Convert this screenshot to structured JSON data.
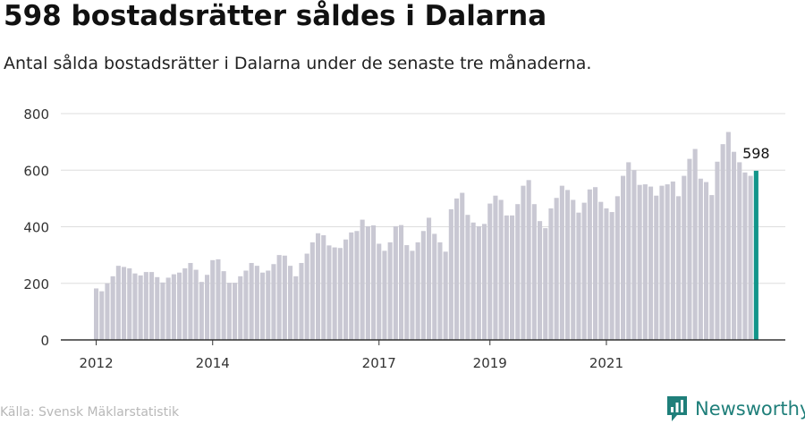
{
  "title": "598 bostadsrätter såldes i Dalarna",
  "subtitle": "Antal sålda bostadsrätter i Dalarna under de senaste tre månaderna.",
  "source": "Källa: Svensk Mäklarstatistik",
  "brand": {
    "name": "Newsworthy",
    "icon": "newsworthy-logo-icon",
    "color": "#1f7f7a"
  },
  "colors": {
    "bar": "#c9c8d3",
    "highlight": "#12958a",
    "grid": "#dddddd",
    "axis": "#333333"
  },
  "chart_data": {
    "type": "bar",
    "title": "598 bostadsrätter såldes i Dalarna",
    "subtitle": "Antal sålda bostadsrätter i Dalarna under de senaste tre månaderna.",
    "xlabel": "",
    "ylabel": "",
    "ylim": [
      0,
      800
    ],
    "yticks": [
      0,
      200,
      400,
      600,
      800
    ],
    "xtick_labels": [
      "2012",
      "2014",
      "2017",
      "2019",
      "2021"
    ],
    "xtick_indices": [
      0,
      21,
      51,
      71,
      92
    ],
    "grid": true,
    "highlight_label": "598",
    "start": "2012-01",
    "frequency": "monthly, rolling three-month total",
    "values": [
      182,
      172,
      200,
      225,
      262,
      258,
      253,
      235,
      228,
      240,
      240,
      222,
      203,
      220,
      232,
      238,
      253,
      272,
      248,
      205,
      230,
      282,
      285,
      243,
      202,
      202,
      225,
      245,
      272,
      262,
      238,
      245,
      268,
      300,
      298,
      262,
      225,
      272,
      305,
      345,
      377,
      370,
      334,
      327,
      325,
      355,
      380,
      385,
      425,
      402,
      405,
      340,
      315,
      345,
      402,
      406,
      335,
      315,
      345,
      385,
      432,
      375,
      345,
      312,
      462,
      500,
      520,
      442,
      415,
      402,
      410,
      482,
      510,
      495,
      440,
      440,
      480,
      545,
      565,
      480,
      420,
      395,
      465,
      502,
      545,
      530,
      495,
      450,
      485,
      532,
      540,
      488,
      465,
      452,
      508,
      580,
      628,
      600,
      548,
      550,
      542,
      510,
      545,
      550,
      560,
      508,
      580,
      640,
      675,
      570,
      558,
      512,
      630,
      692,
      735,
      665,
      628,
      592,
      580,
      598
    ]
  }
}
